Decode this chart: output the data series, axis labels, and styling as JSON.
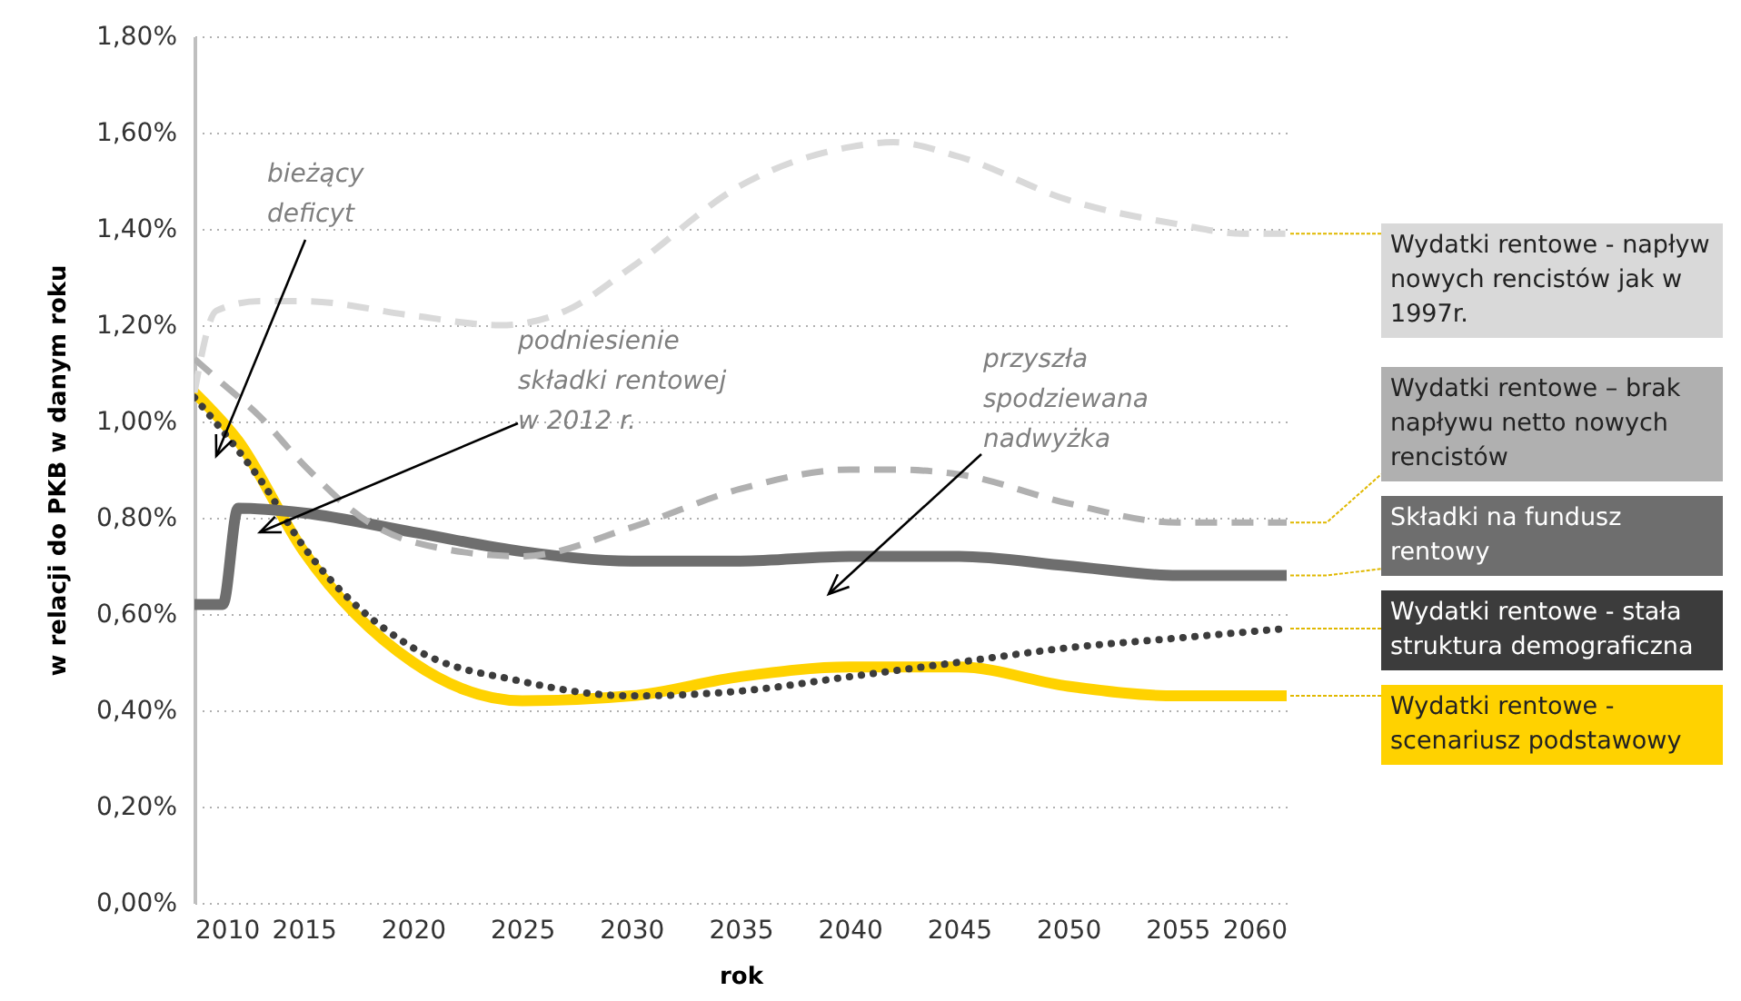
{
  "chart_data": {
    "type": "line",
    "xlabel": "rok",
    "ylabel": "w relacji do PKB w danym roku",
    "xlim": [
      2010,
      2060
    ],
    "xticks": [
      2010,
      2015,
      2020,
      2025,
      2030,
      2035,
      2040,
      2045,
      2050,
      2055,
      2060
    ],
    "ylim": [
      0,
      1.8
    ],
    "yticks": [
      {
        "value": 0,
        "label": "0,00%"
      },
      {
        "value": 0.2,
        "label": "0,20%"
      },
      {
        "value": 0.4,
        "label": "0,40%"
      },
      {
        "value": 0.6,
        "label": "0,60%"
      },
      {
        "value": 0.8,
        "label": "0,80%"
      },
      {
        "value": 1,
        "label": "1,00%"
      },
      {
        "value": 1.2,
        "label": "1,20%"
      },
      {
        "value": 1.4,
        "label": "1,40%"
      },
      {
        "value": 1.6,
        "label": "1,60%"
      },
      {
        "value": 1.8,
        "label": "1,80%"
      }
    ],
    "grid": "y",
    "legend": "right",
    "series": [
      {
        "name": "Wydatki rentowe - napływ nowych rencistów jak w 1997r.",
        "color": "#d9d9d9",
        "line_style": "dashed",
        "x": [
          2010,
          2011,
          2013,
          2015,
          2020,
          2024,
          2027,
          2030,
          2035,
          2040,
          2042,
          2045,
          2050,
          2055,
          2058,
          2060
        ],
        "values": [
          1.06,
          1.23,
          1.25,
          1.25,
          1.22,
          1.2,
          1.23,
          1.32,
          1.49,
          1.57,
          1.58,
          1.55,
          1.46,
          1.41,
          1.39,
          1.39
        ]
      },
      {
        "name": "Wydatki rentowe – brak napływu netto nowych rencistów",
        "color": "#b0b0b0",
        "line_style": "dashed",
        "x": [
          2010,
          2011,
          2013,
          2015,
          2018,
          2020,
          2025,
          2030,
          2035,
          2040,
          2042,
          2045,
          2050,
          2055,
          2060
        ],
        "values": [
          1.13,
          1.09,
          1.01,
          0.91,
          0.79,
          0.75,
          0.72,
          0.78,
          0.86,
          0.9,
          0.9,
          0.89,
          0.83,
          0.79,
          0.79
        ]
      },
      {
        "name": "Składki na fundusz rentowy",
        "color": "#6e6e6e",
        "line_style": "solid",
        "x": [
          2010,
          2011.3,
          2012,
          2015,
          2020,
          2025,
          2030,
          2035,
          2040,
          2045,
          2050,
          2055,
          2060
        ],
        "values": [
          0.62,
          0.62,
          0.82,
          0.81,
          0.77,
          0.73,
          0.71,
          0.71,
          0.72,
          0.72,
          0.7,
          0.68,
          0.68
        ]
      },
      {
        "name": "Wydatki rentowe - stała struktura demograficzna",
        "color": "#3c3c3c",
        "line_style": "dotted",
        "x": [
          2010,
          2012,
          2013,
          2015,
          2020,
          2025,
          2030,
          2035,
          2040,
          2045,
          2050,
          2055,
          2060
        ],
        "values": [
          1.05,
          0.94,
          0.88,
          0.74,
          0.53,
          0.46,
          0.43,
          0.44,
          0.47,
          0.5,
          0.53,
          0.55,
          0.57
        ]
      },
      {
        "name": "Wydatki rentowe - scenariusz podstawowy",
        "color": "#ffd200",
        "line_style": "solid",
        "x": [
          2010,
          2012,
          2015,
          2020,
          2025,
          2030,
          2035,
          2040,
          2045,
          2050,
          2055,
          2060
        ],
        "values": [
          1.06,
          0.96,
          0.73,
          0.5,
          0.42,
          0.43,
          0.47,
          0.49,
          0.49,
          0.45,
          0.43,
          0.43
        ]
      }
    ],
    "annotations": [
      "bieżący\ndeficyt",
      "podniesienie\nskładki rentowej\nw 2012 r.",
      "przyszła\nspodziewana\nnadwyżka"
    ]
  }
}
